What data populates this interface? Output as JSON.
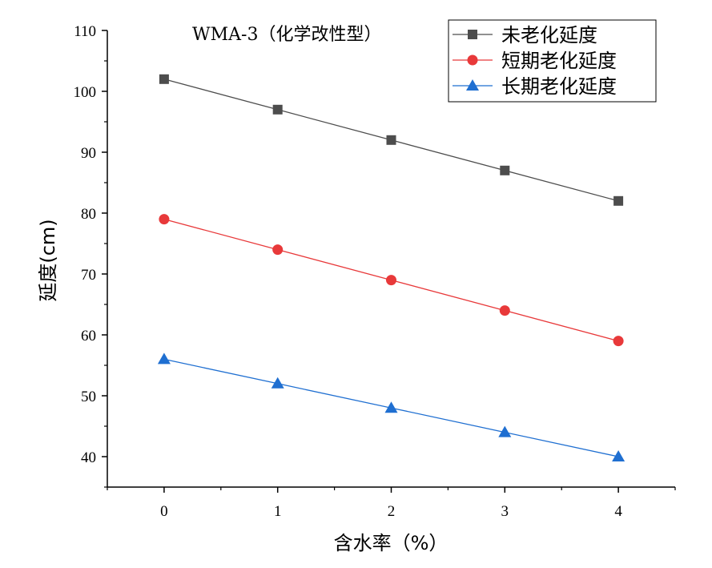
{
  "chart_data": {
    "type": "line",
    "title": "WMA-3（化学改性型）",
    "xlabel": "含水率（%）",
    "ylabel": "延度(cm)",
    "x": [
      0,
      1,
      2,
      3,
      4
    ],
    "xlim": [
      -0.5,
      4.5
    ],
    "ylim": [
      35,
      110
    ],
    "xticks": [
      0,
      1,
      2,
      3,
      4
    ],
    "yticks": [
      40,
      50,
      60,
      70,
      80,
      90,
      100,
      110
    ],
    "legend_position": "top-right",
    "series": [
      {
        "name": "未老化延度",
        "values": [
          102,
          97,
          92,
          87,
          82
        ],
        "color": "#4d4d4d",
        "marker": "square"
      },
      {
        "name": "短期老化延度",
        "values": [
          79,
          74,
          69,
          64,
          59
        ],
        "color": "#e8393a",
        "marker": "circle"
      },
      {
        "name": "长期老化延度",
        "values": [
          56,
          52,
          48,
          44,
          40
        ],
        "color": "#1f6fd1",
        "marker": "triangle"
      }
    ]
  }
}
